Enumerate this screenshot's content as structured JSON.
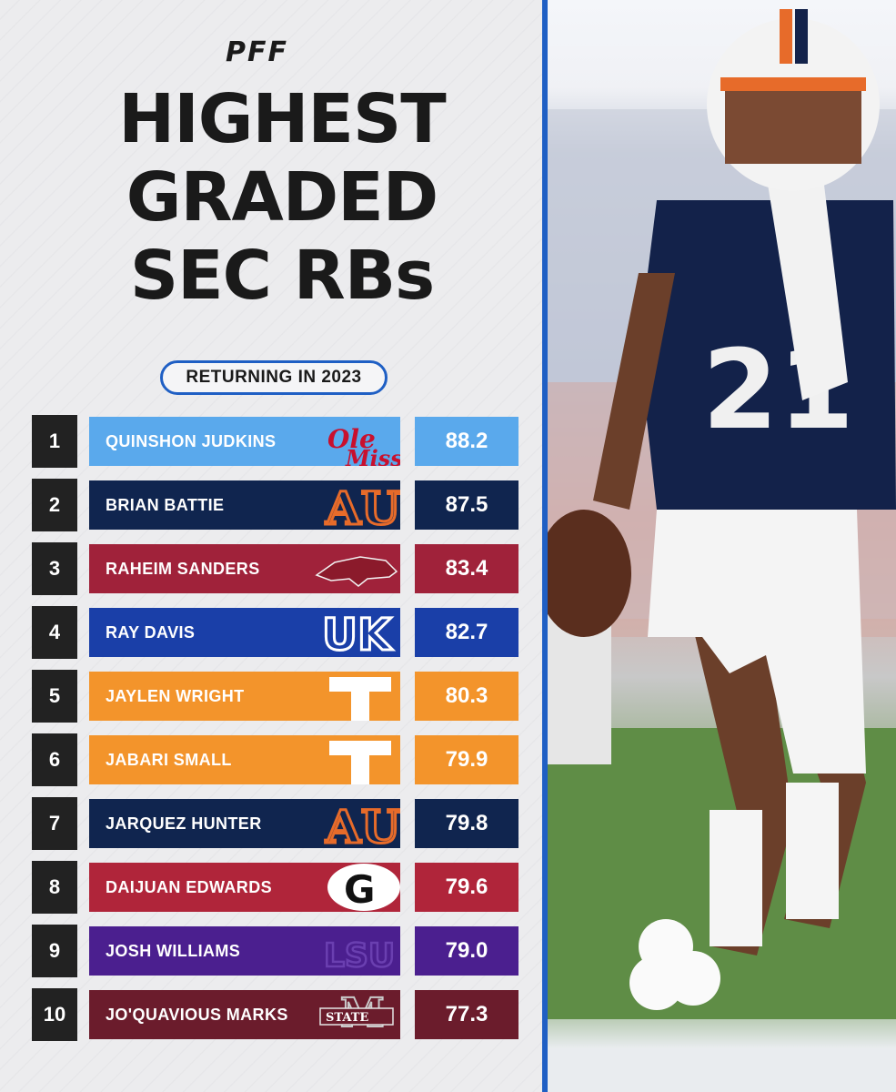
{
  "brand": "PFF",
  "title_lines": [
    "HIGHEST",
    "GRADED",
    "SEC RBs"
  ],
  "subtitle": "RETURNING IN 2023",
  "rows": [
    {
      "rank": "1",
      "name": "QUINSHON JUDKINS",
      "grade": "88.2",
      "team": "Ole Miss",
      "icon": "ole-miss-logo",
      "bar_color": "#5aa9ec",
      "grade_color": "#5aa9ec",
      "text_color": "#ffffff"
    },
    {
      "rank": "2",
      "name": "BRIAN BATTIE",
      "grade": "87.5",
      "team": "Auburn",
      "icon": "auburn-logo",
      "bar_color": "#10254f",
      "grade_color": "#10254f",
      "text_color": "#ffffff"
    },
    {
      "rank": "3",
      "name": "RAHEIM SANDERS",
      "grade": "83.4",
      "team": "Arkansas",
      "icon": "arkansas-razorback-logo",
      "bar_color": "#a0223a",
      "grade_color": "#a0223a",
      "text_color": "#ffffff"
    },
    {
      "rank": "4",
      "name": "RAY DAVIS",
      "grade": "82.7",
      "team": "Kentucky",
      "icon": "kentucky-logo",
      "bar_color": "#1a3fa8",
      "grade_color": "#1a3fa8",
      "text_color": "#ffffff"
    },
    {
      "rank": "5",
      "name": "JAYLEN WRIGHT",
      "grade": "80.3",
      "team": "Tennessee",
      "icon": "tennessee-logo",
      "bar_color": "#f3942b",
      "grade_color": "#f3942b",
      "text_color": "#ffffff"
    },
    {
      "rank": "6",
      "name": "JABARI SMALL",
      "grade": "79.9",
      "team": "Tennessee",
      "icon": "tennessee-logo",
      "bar_color": "#f3942b",
      "grade_color": "#f3942b",
      "text_color": "#ffffff"
    },
    {
      "rank": "7",
      "name": "JARQUEZ HUNTER",
      "grade": "79.8",
      "team": "Auburn",
      "icon": "auburn-logo",
      "bar_color": "#10254f",
      "grade_color": "#10254f",
      "text_color": "#ffffff"
    },
    {
      "rank": "8",
      "name": "DAIJUAN EDWARDS",
      "grade": "79.6",
      "team": "Georgia",
      "icon": "georgia-logo",
      "bar_color": "#b0253a",
      "grade_color": "#b0253a",
      "text_color": "#ffffff"
    },
    {
      "rank": "9",
      "name": "JOSH WILLIAMS",
      "grade": "79.0",
      "team": "LSU",
      "icon": "lsu-logo",
      "bar_color": "#4b1f8f",
      "grade_color": "#4b1f8f",
      "text_color": "#ffffff"
    },
    {
      "rank": "10",
      "name": "JO'QUAVIOUS MARKS",
      "grade": "77.3",
      "team": "Mississippi State",
      "icon": "mississippi-state-logo",
      "bar_color": "#6b1c2c",
      "grade_color": "#6b1c2c",
      "text_color": "#ffffff"
    }
  ],
  "colors": {
    "accent": "#1f5fc4",
    "dark": "#1a1a1a"
  }
}
